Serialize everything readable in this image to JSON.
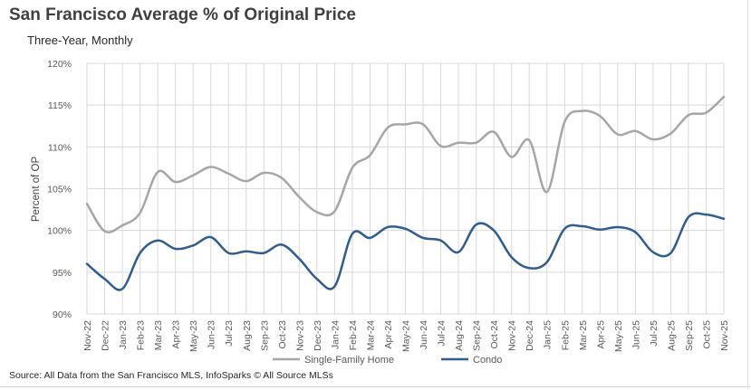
{
  "chart_data": {
    "type": "line",
    "title": "San Francisco Average % of Original Price",
    "subtitle": "Three-Year, Monthly",
    "ylabel": "Percent of OP",
    "source": "Source: All Data from the San Francisco MLS, InfoSparks © All Source MLSs",
    "categories": [
      "Nov-22",
      "Dec-22",
      "Jan-23",
      "Feb-23",
      "Mar-23",
      "Apr-23",
      "May-23",
      "Jun-23",
      "Jul-23",
      "Aug-23",
      "Sep-23",
      "Oct-23",
      "Nov-23",
      "Dec-23",
      "Jan-24",
      "Feb-24",
      "Mar-24",
      "Apr-24",
      "May-24",
      "Jun-24",
      "Jul-24",
      "Aug-24",
      "Sep-24",
      "Oct-24",
      "Nov-24",
      "Dec-24",
      "Jan-25",
      "Feb-25",
      "Mar-25",
      "Apr-25",
      "May-25",
      "Jun-25",
      "Jul-25",
      "Aug-25",
      "Sep-25",
      "Oct-25",
      "Nov-25"
    ],
    "y_ticks": [
      "90%",
      "95%",
      "100%",
      "105%",
      "110%",
      "115%",
      "120%"
    ],
    "ylim": [
      90,
      120
    ],
    "grid": true,
    "legend_position": "bottom",
    "series": [
      {
        "name": "Single-Family Home",
        "color": "#a6a6a6",
        "values": [
          103.2,
          99.9,
          100.6,
          102.1,
          107.0,
          105.8,
          106.6,
          107.6,
          106.8,
          105.9,
          106.9,
          106.3,
          104.0,
          102.2,
          102.3,
          107.5,
          109.0,
          112.3,
          112.7,
          112.7,
          110.1,
          110.5,
          110.5,
          111.8,
          108.8,
          110.8,
          104.6,
          113.0,
          114.3,
          113.7,
          111.5,
          111.9,
          110.9,
          111.6,
          113.8,
          114.1,
          116.0
        ]
      },
      {
        "name": "Condo",
        "color": "#2e5d92",
        "values": [
          96.0,
          94.2,
          93.0,
          97.3,
          98.8,
          97.8,
          98.2,
          99.2,
          97.3,
          97.5,
          97.3,
          98.3,
          96.6,
          94.2,
          93.3,
          99.6,
          99.1,
          100.4,
          100.2,
          99.1,
          98.8,
          97.4,
          100.7,
          100.0,
          96.8,
          95.5,
          96.2,
          100.2,
          100.5,
          100.1,
          100.4,
          99.8,
          97.4,
          97.3,
          101.6,
          101.9,
          101.4
        ]
      }
    ]
  }
}
